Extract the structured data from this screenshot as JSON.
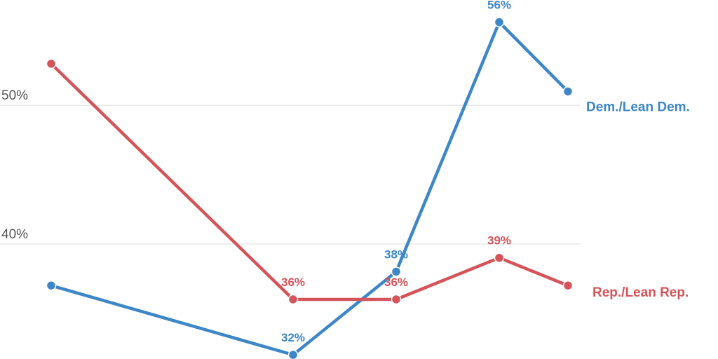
{
  "chart_data": {
    "type": "line",
    "categories": [
      null,
      null,
      null,
      null,
      null
    ],
    "series": [
      {
        "name": "Dem./Lean Dem.",
        "color": "#3d87c8",
        "values": [
          37,
          32,
          38,
          56,
          51
        ],
        "value_labels": [
          null,
          "32%",
          "38%",
          "56%",
          null
        ]
      },
      {
        "name": "Rep./Lean Rep.",
        "color": "#d4545a",
        "values": [
          53,
          36,
          36,
          39,
          37
        ],
        "value_labels": [
          null,
          "36%",
          "36%",
          "39%",
          null
        ]
      }
    ],
    "ylim": [
      31.7,
      57.6
    ],
    "yticks": [
      {
        "value": 40,
        "label": "40%"
      },
      {
        "value": 50,
        "label": "50%"
      }
    ],
    "grid": true
  }
}
